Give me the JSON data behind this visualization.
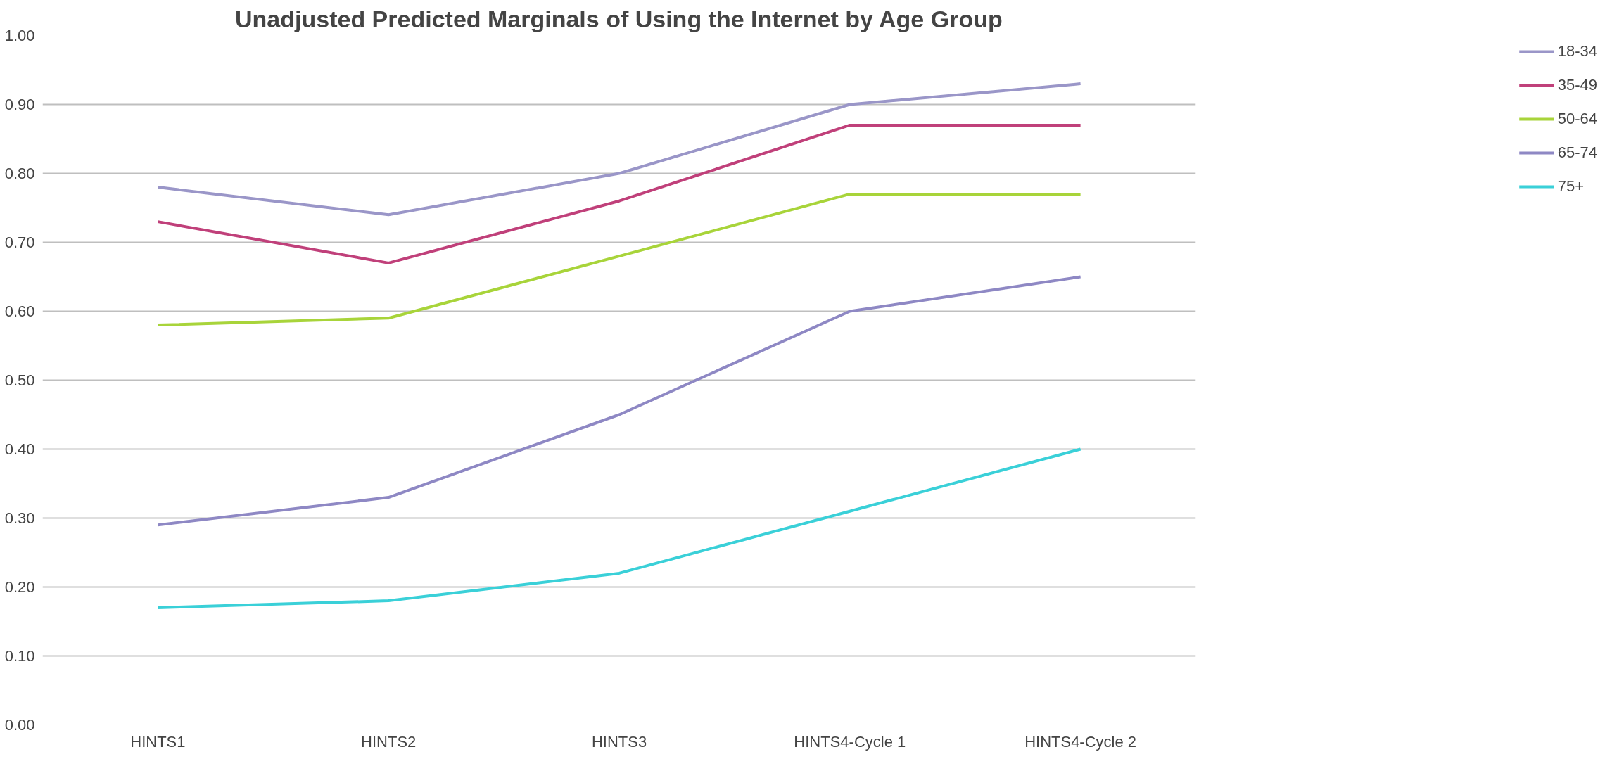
{
  "chart_data": {
    "type": "line",
    "title": "Unadjusted Predicted Marginals of Using the Internet by Age Group",
    "categories": [
      "HINTS1",
      "HINTS2",
      "HINTS3",
      "HINTS4-Cycle 1",
      "HINTS4-Cycle 2"
    ],
    "series": [
      {
        "name": "18-34",
        "color": "#9a96c8",
        "values": [
          0.78,
          0.74,
          0.8,
          0.9,
          0.93
        ]
      },
      {
        "name": "35-49",
        "color": "#c0407a",
        "values": [
          0.73,
          0.67,
          0.76,
          0.87,
          0.87
        ]
      },
      {
        "name": "50-64",
        "color": "#a8d43a",
        "values": [
          0.58,
          0.59,
          0.68,
          0.77,
          0.77
        ]
      },
      {
        "name": "65-74",
        "color": "#8e88c4",
        "values": [
          0.29,
          0.33,
          0.45,
          0.6,
          0.65
        ]
      },
      {
        "name": "75+",
        "color": "#3ad0d8",
        "values": [
          0.17,
          0.18,
          0.22,
          0.31,
          0.4
        ]
      }
    ],
    "ylim": [
      0,
      1
    ],
    "yticks": [
      {
        "value": 0,
        "label": "0.00"
      },
      {
        "value": 0.1,
        "label": "0.10"
      },
      {
        "value": 0.2,
        "label": "0.20"
      },
      {
        "value": 0.3,
        "label": "0.30"
      },
      {
        "value": 0.4,
        "label": "0.40"
      },
      {
        "value": 0.5,
        "label": "0.50"
      },
      {
        "value": 0.6,
        "label": "0.60"
      },
      {
        "value": 0.7,
        "label": "0.70"
      },
      {
        "value": 0.8,
        "label": "0.80"
      },
      {
        "value": 0.9,
        "label": "0.90"
      },
      {
        "value": 1,
        "label": "1.00"
      }
    ],
    "grid": "y",
    "legend": "right",
    "marker": "none",
    "line_style": "solid"
  }
}
